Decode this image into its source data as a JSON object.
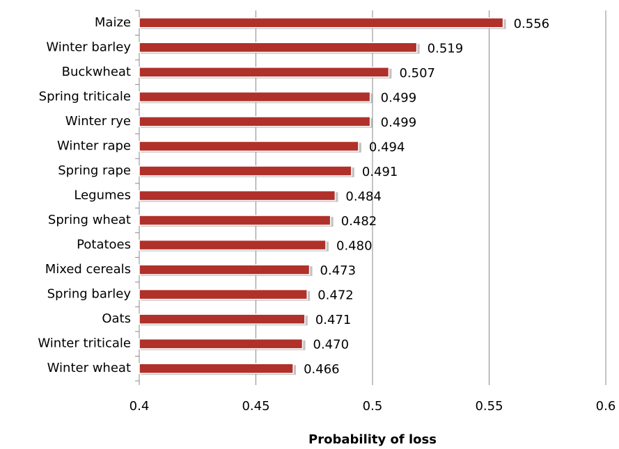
{
  "chart_data": {
    "type": "bar",
    "orientation": "horizontal",
    "x_label": "Probability of loss",
    "categories": [
      "Maize",
      "Winter barley",
      "Buckwheat",
      "Spring triticale",
      "Winter rye",
      "Winter rape",
      "Spring rape",
      "Legumes",
      "Spring wheat",
      "Potatoes",
      "Mixed cereals",
      "Spring barley",
      "Oats",
      "Winter triticale",
      "Winter wheat"
    ],
    "values": [
      0.556,
      0.519,
      0.507,
      0.499,
      0.499,
      0.494,
      0.491,
      0.484,
      0.482,
      0.48,
      0.473,
      0.472,
      0.471,
      0.47,
      0.466
    ],
    "value_labels": [
      "0.556",
      "0.519",
      "0.507",
      "0.499",
      "0.499",
      "0.494",
      "0.491",
      "0.484",
      "0.482",
      "0.480",
      "0.473",
      "0.472",
      "0.471",
      "0.470",
      "0.466"
    ],
    "color": "#b0302a",
    "xlim": [
      0.4,
      0.6
    ],
    "xticks": [
      0.4,
      0.45,
      0.5,
      0.55,
      0.6
    ],
    "grid": true
  }
}
